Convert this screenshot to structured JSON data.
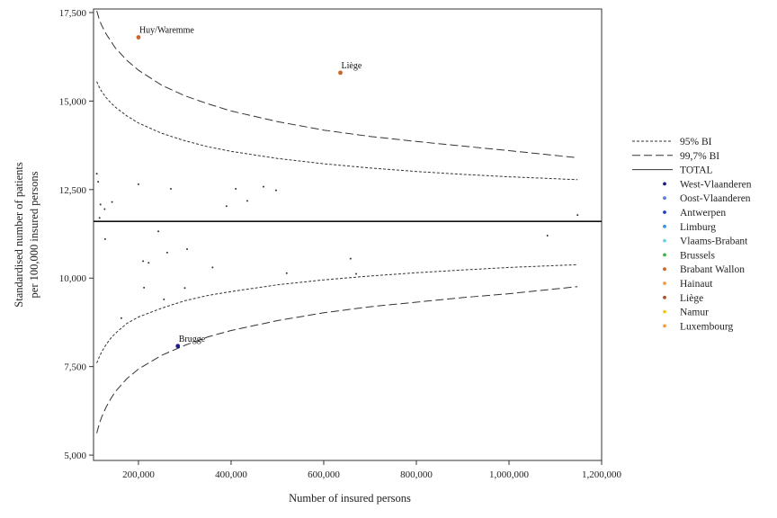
{
  "chart_data": {
    "type": "scatter",
    "xlabel": "Number of insured persons",
    "ylabel_lines": [
      "Standardised number of patients",
      "per 100,000 insured persons"
    ],
    "xlim": [
      103000,
      1200000
    ],
    "ylim": [
      4850,
      17600
    ],
    "x_ticks": [
      200000,
      400000,
      600000,
      800000,
      1000000,
      1200000
    ],
    "x_tick_labels": [
      "200,000",
      "400,000",
      "600,000",
      "800,000",
      "1,000,000",
      "1,200,000"
    ],
    "y_ticks": [
      5000,
      7500,
      10000,
      12500,
      15000,
      17500
    ],
    "y_tick_labels": [
      "5,000",
      "7,500",
      "10,000",
      "12,500",
      "15,000",
      "17,500"
    ],
    "total_value": 11600,
    "curve_x": [
      110000,
      115000,
      120000,
      130000,
      140000,
      150000,
      175000,
      200000,
      250000,
      300000,
      350000,
      400000,
      500000,
      600000,
      700000,
      800000,
      900000,
      1000000,
      1148000
    ],
    "upper_997": [
      17550,
      17320,
      17150,
      16900,
      16700,
      16500,
      16150,
      15870,
      15450,
      15150,
      14920,
      14720,
      14420,
      14180,
      14000,
      13860,
      13730,
      13600,
      13400
    ],
    "upper_95": [
      15550,
      15400,
      15280,
      15100,
      14950,
      14830,
      14580,
      14380,
      14090,
      13880,
      13710,
      13580,
      13380,
      13230,
      13110,
      13010,
      12930,
      12860,
      12780
    ],
    "lower_95": [
      7600,
      7760,
      7900,
      8120,
      8300,
      8440,
      8720,
      8900,
      9150,
      9360,
      9510,
      9620,
      9810,
      9950,
      10060,
      10150,
      10230,
      10300,
      10380
    ],
    "lower_997": [
      5620,
      5870,
      6060,
      6350,
      6590,
      6790,
      7160,
      7430,
      7820,
      8100,
      8340,
      8520,
      8800,
      9020,
      9190,
      9320,
      9450,
      9560,
      9760
    ],
    "points": [
      {
        "x": 110000,
        "y": 12950
      },
      {
        "x": 113000,
        "y": 12720
      },
      {
        "x": 116000,
        "y": 11700
      },
      {
        "x": 118000,
        "y": 12080
      },
      {
        "x": 127000,
        "y": 11950
      },
      {
        "x": 143000,
        "y": 12150
      },
      {
        "x": 200000,
        "y": 12650
      },
      {
        "x": 270000,
        "y": 12520
      },
      {
        "x": 390000,
        "y": 12030
      },
      {
        "x": 410000,
        "y": 12520
      },
      {
        "x": 435000,
        "y": 12180
      },
      {
        "x": 470000,
        "y": 12580
      },
      {
        "x": 497000,
        "y": 12480
      },
      {
        "x": 1148000,
        "y": 11780
      },
      {
        "x": 128000,
        "y": 11100
      },
      {
        "x": 210000,
        "y": 10480
      },
      {
        "x": 222000,
        "y": 10430
      },
      {
        "x": 243000,
        "y": 11320
      },
      {
        "x": 262000,
        "y": 10720
      },
      {
        "x": 305000,
        "y": 10820
      },
      {
        "x": 360000,
        "y": 10300
      },
      {
        "x": 520000,
        "y": 10140
      },
      {
        "x": 658000,
        "y": 10550
      },
      {
        "x": 670000,
        "y": 10120
      },
      {
        "x": 1083000,
        "y": 11200
      },
      {
        "x": 212000,
        "y": 9730
      },
      {
        "x": 300000,
        "y": 9720
      },
      {
        "x": 255000,
        "y": 9400
      },
      {
        "x": 163000,
        "y": 8870
      }
    ],
    "highlighted": [
      {
        "label": "Huy/Waremme",
        "x": 200000,
        "y": 16800,
        "color": "#c8672a"
      },
      {
        "label": "Liège",
        "x": 636000,
        "y": 15800,
        "color": "#c8672a"
      },
      {
        "label": "Brugge",
        "x": 285000,
        "y": 8080,
        "color": "#1a1a8c"
      }
    ],
    "legend": [
      {
        "label": "95% BI",
        "kind": "line",
        "dash": "3,2"
      },
      {
        "label": "99,7% BI",
        "kind": "line",
        "dash": "9,4"
      },
      {
        "label": "TOTAL",
        "kind": "line",
        "dash": ""
      },
      {
        "label": "West-Vlaanderen",
        "kind": "dot",
        "color": "#1a1a7a"
      },
      {
        "label": "Oost-Vlaanderen",
        "kind": "dot",
        "color": "#5b7fd6"
      },
      {
        "label": "Antwerpen",
        "kind": "dot",
        "color": "#1f3fbf"
      },
      {
        "label": "Limburg",
        "kind": "dot",
        "color": "#3e8fd8"
      },
      {
        "label": "Vlaams-Brabant",
        "kind": "dot",
        "color": "#6fcfe8"
      },
      {
        "label": "Brussels",
        "kind": "dot",
        "color": "#3fb04a"
      },
      {
        "label": "Brabant Wallon",
        "kind": "dot",
        "color": "#c8672a"
      },
      {
        "label": "Hainaut",
        "kind": "dot",
        "color": "#f09a3e"
      },
      {
        "label": "Liège",
        "kind": "dot",
        "color": "#a8522a"
      },
      {
        "label": "Namur",
        "kind": "dot",
        "color": "#f5c518"
      },
      {
        "label": "Luxembourg",
        "kind": "dot",
        "color": "#f0a040"
      }
    ]
  }
}
